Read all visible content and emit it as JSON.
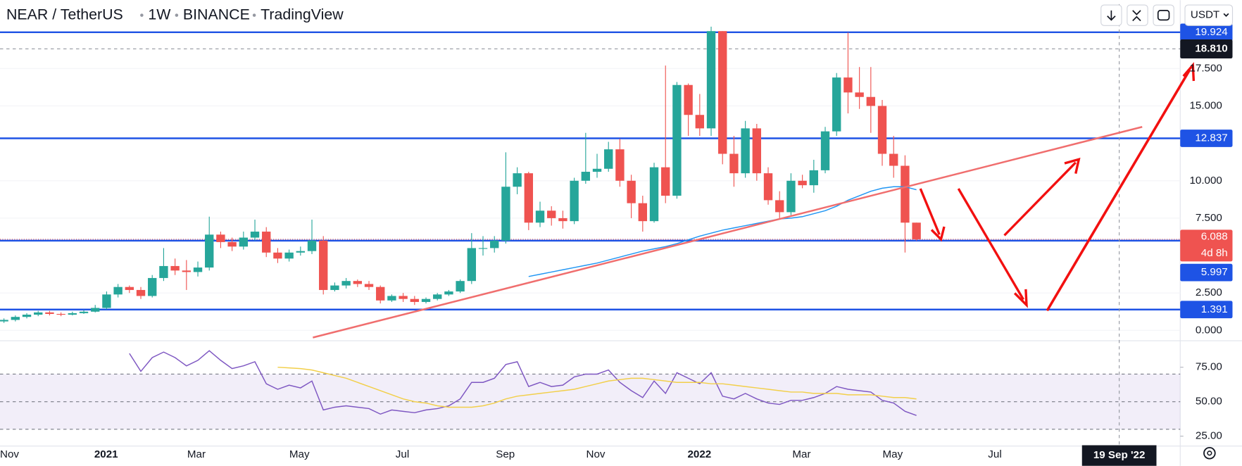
{
  "chart_data": {
    "type": "candlestick",
    "header": {
      "symbol": "NEAR / TetherUS",
      "interval": "1W",
      "exchange": "BINANCE",
      "source": "TradingView"
    },
    "currency_button": "USDT",
    "xlabels": [
      "Nov",
      "2021",
      "Mar",
      "May",
      "Jul",
      "Sep",
      "Nov",
      "2022",
      "Mar",
      "May",
      "Jul"
    ],
    "crosshair_date": "19 Sep '22",
    "crosshair_price": {
      "value": 18.81,
      "label": "18.810"
    },
    "up_color": "#26a69a",
    "down_color": "#ef5350",
    "open": [
      0.6,
      0.7,
      0.9,
      1.05,
      1.2,
      1.1,
      1.05,
      1.15,
      1.25,
      1.5,
      2.4,
      2.9,
      2.7,
      2.3,
      3.5,
      4.3,
      4.0,
      3.9,
      4.2,
      6.4,
      5.9,
      5.6,
      6.2,
      6.6,
      5.2,
      4.8,
      5.2,
      5.3,
      6.0,
      2.7,
      3.0,
      3.3,
      3.1,
      2.9,
      2.0,
      2.3,
      2.1,
      1.9,
      2.1,
      2.4,
      2.6,
      3.3,
      5.5,
      5.5,
      6.0,
      9.6,
      10.5,
      7.2,
      8.0,
      7.5,
      7.3,
      10.0,
      10.6,
      10.8,
      12.1,
      10.0,
      8.5,
      7.3,
      10.9,
      9.0,
      16.4,
      14.4,
      13.5,
      20.0,
      11.8,
      10.5,
      13.5,
      10.5,
      8.7,
      7.9,
      10.0,
      9.7,
      10.7,
      13.3,
      16.9,
      15.9,
      15.6,
      15.0,
      11.8,
      11.0,
      7.2
    ],
    "high": [
      0.8,
      1.0,
      1.15,
      1.3,
      1.3,
      1.2,
      1.25,
      1.35,
      1.7,
      2.6,
      3.1,
      3.0,
      2.9,
      3.7,
      5.5,
      4.8,
      4.7,
      4.6,
      7.6,
      6.6,
      6.2,
      6.6,
      7.4,
      6.9,
      5.5,
      5.4,
      5.6,
      7.4,
      6.3,
      3.2,
      3.5,
      3.4,
      3.3,
      3.0,
      2.4,
      2.5,
      2.3,
      2.2,
      2.5,
      2.7,
      3.4,
      6.5,
      6.3,
      6.3,
      11.9,
      10.9,
      10.6,
      8.6,
      8.3,
      8.0,
      10.2,
      13.2,
      11.8,
      12.6,
      12.8,
      10.4,
      9.0,
      11.2,
      17.7,
      16.6,
      16.5,
      15.8,
      20.3,
      20.0,
      13.0,
      14.0,
      13.8,
      10.9,
      9.3,
      10.5,
      10.4,
      11.4,
      13.6,
      17.2,
      19.9,
      17.6,
      17.6,
      15.4,
      13.0,
      11.7,
      7.2
    ],
    "low": [
      0.5,
      0.6,
      0.8,
      0.95,
      1.0,
      0.95,
      1.0,
      1.1,
      1.2,
      1.4,
      2.2,
      2.5,
      2.1,
      2.2,
      3.3,
      3.7,
      2.7,
      3.6,
      4.0,
      5.5,
      5.3,
      5.4,
      6.0,
      4.9,
      4.5,
      4.6,
      5.0,
      5.1,
      2.4,
      2.6,
      2.8,
      2.9,
      2.7,
      1.8,
      1.9,
      1.9,
      1.7,
      1.8,
      2.0,
      2.3,
      2.5,
      3.1,
      5.0,
      5.2,
      5.8,
      9.1,
      6.7,
      6.9,
      7.0,
      6.8,
      7.1,
      9.8,
      10.2,
      10.6,
      9.6,
      7.5,
      6.6,
      7.2,
      8.5,
      8.8,
      13.0,
      13.0,
      13.0,
      11.1,
      9.6,
      10.2,
      10.0,
      8.4,
      7.5,
      7.7,
      9.5,
      9.2,
      10.5,
      13.0,
      14.5,
      14.8,
      13.2,
      11.0,
      10.2,
      5.2,
      6.0
    ],
    "close": [
      0.7,
      0.9,
      1.05,
      1.2,
      1.1,
      1.05,
      1.15,
      1.25,
      1.5,
      2.4,
      2.9,
      2.7,
      2.3,
      3.5,
      4.3,
      4.0,
      3.9,
      4.2,
      6.4,
      5.9,
      5.6,
      6.2,
      6.6,
      5.2,
      4.8,
      5.2,
      5.3,
      6.0,
      2.7,
      3.0,
      3.3,
      3.1,
      2.9,
      2.0,
      2.3,
      2.1,
      1.9,
      2.1,
      2.4,
      2.6,
      3.3,
      5.5,
      5.5,
      6.0,
      9.6,
      10.5,
      7.2,
      8.0,
      7.5,
      7.3,
      10.0,
      10.6,
      10.8,
      12.1,
      10.0,
      8.5,
      7.3,
      10.9,
      9.0,
      16.4,
      14.4,
      13.5,
      20.0,
      11.8,
      10.5,
      13.5,
      10.5,
      8.7,
      7.9,
      10.0,
      9.7,
      10.7,
      13.3,
      16.9,
      15.9,
      15.6,
      15.0,
      11.8,
      11.0,
      7.2,
      6.088
    ],
    "ma": {
      "color": "#2196f3",
      "values": [
        null,
        null,
        null,
        null,
        null,
        null,
        null,
        null,
        null,
        null,
        null,
        null,
        null,
        null,
        null,
        null,
        null,
        null,
        null,
        null,
        null,
        null,
        null,
        null,
        null,
        null,
        null,
        null,
        null,
        null,
        null,
        null,
        null,
        null,
        null,
        null,
        null,
        null,
        null,
        null,
        null,
        null,
        null,
        null,
        null,
        null,
        3.6,
        3.75,
        3.9,
        4.05,
        4.2,
        4.35,
        4.5,
        4.7,
        4.9,
        5.1,
        5.3,
        5.45,
        5.6,
        5.8,
        6.05,
        6.3,
        6.5,
        6.7,
        6.85,
        7.0,
        7.15,
        7.3,
        7.45,
        7.5,
        7.6,
        7.8,
        8.0,
        8.3,
        8.7,
        9.0,
        9.3,
        9.5,
        9.6,
        9.6,
        9.4
      ]
    },
    "levels": [
      19.924,
      12.837,
      5.997,
      1.391
    ],
    "level_color": "#1e53e5",
    "last_price": {
      "value": 6.088,
      "countdown": "4d 8h"
    },
    "ylim": [
      -0.69,
      20.48
    ],
    "yticks": [
      {
        "value": 0,
        "label": "0.000"
      },
      {
        "value": 2.5,
        "label": "2.500"
      },
      {
        "value": 7.5,
        "label": "7.500"
      },
      {
        "value": 10,
        "label": "10.000"
      },
      {
        "value": 15,
        "label": "15.000"
      },
      {
        "value": 17.5,
        "label": "17.500"
      }
    ],
    "rsi": {
      "color": "#7e57c2",
      "values": [
        null,
        null,
        null,
        null,
        null,
        null,
        null,
        null,
        null,
        null,
        null,
        85,
        72,
        82,
        86,
        82,
        76,
        80,
        87,
        80,
        74,
        76,
        79,
        63,
        59,
        62,
        60,
        65,
        44,
        46,
        47,
        46,
        45,
        41,
        44,
        43,
        42,
        44,
        45,
        47,
        52,
        64,
        64,
        67,
        77,
        79,
        61,
        64,
        61,
        62,
        68,
        70,
        70,
        73,
        64,
        58,
        53,
        65,
        56,
        71,
        67,
        63,
        71,
        54,
        52,
        56,
        52,
        49,
        48,
        51,
        51,
        53,
        56,
        61,
        59,
        58,
        57,
        51,
        49,
        43,
        40
      ]
    },
    "rsi_ma": {
      "color": "#f2cf4a",
      "values": [
        null,
        null,
        null,
        null,
        null,
        null,
        null,
        null,
        null,
        null,
        null,
        null,
        null,
        null,
        null,
        null,
        null,
        null,
        null,
        null,
        null,
        null,
        null,
        null,
        75,
        74.5,
        74,
        73,
        71,
        69,
        67,
        64,
        61,
        58,
        55,
        52,
        50,
        49,
        47,
        46,
        46,
        46,
        47,
        49,
        52,
        54,
        55,
        56,
        57,
        58,
        59,
        61,
        63,
        65,
        66,
        67,
        67,
        66,
        65,
        64,
        64,
        64,
        63,
        63,
        62,
        61,
        60,
        59,
        58,
        57,
        57,
        56,
        56,
        56,
        55,
        55,
        55,
        54,
        53,
        53,
        52
      ]
    },
    "rsi_band": [
      30,
      70
    ],
    "rsi_ylim": [
      18.4,
      93.1
    ],
    "rsi_yticks": [
      {
        "value": 25,
        "label": "25.00"
      },
      {
        "value": 50,
        "label": "50.00"
      },
      {
        "value": 75,
        "label": "75.00"
      }
    ]
  }
}
